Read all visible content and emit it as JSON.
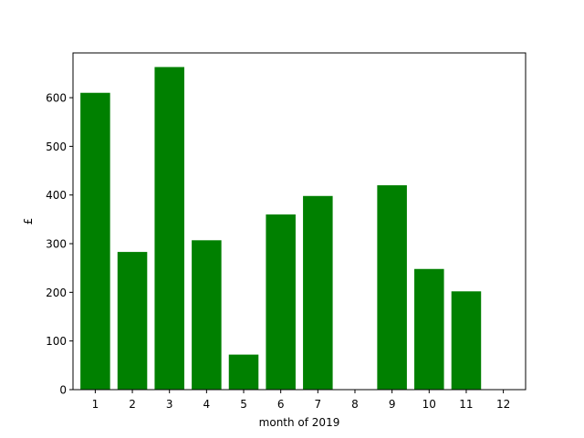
{
  "chart_data": {
    "type": "bar",
    "title": "",
    "xlabel": "month of 2019",
    "ylabel": "£",
    "categories": [
      "1",
      "2",
      "3",
      "4",
      "5",
      "6",
      "7",
      "8",
      "9",
      "10",
      "11",
      "12"
    ],
    "values": [
      610,
      283,
      663,
      307,
      72,
      360,
      398,
      0,
      420,
      248,
      202,
      0
    ],
    "ylim": [
      0,
      692
    ],
    "yticks": [
      0,
      100,
      200,
      300,
      400,
      500,
      600
    ],
    "grid": false,
    "bar_color": "#008000"
  }
}
